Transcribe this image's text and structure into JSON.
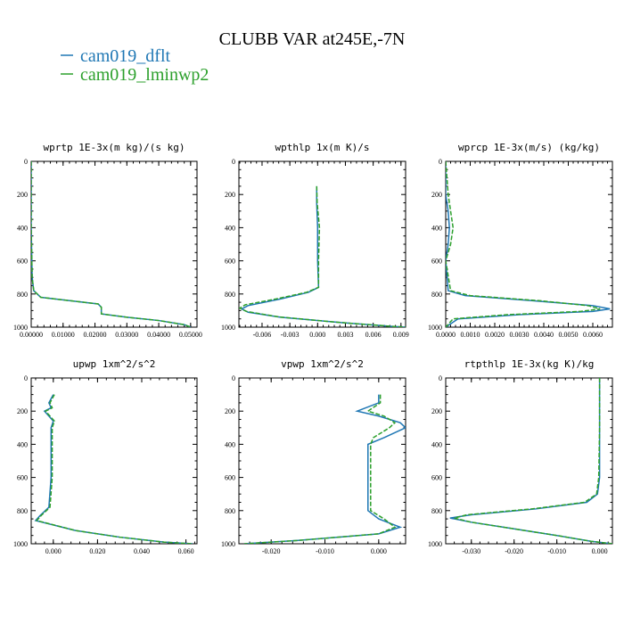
{
  "title": "CLUBB VAR at245E,-7N",
  "colors": {
    "blue": "#1f77b4",
    "green": "#2ca02c",
    "axis": "#000000"
  },
  "legend": [
    {
      "label": "cam019_dflt",
      "color": "#1f77b4"
    },
    {
      "label": "cam019_lminwp2",
      "color": "#2ca02c"
    }
  ],
  "chart_data": [
    {
      "type": "line",
      "title": "wprtp  1E-3x(m kg)/(s kg)",
      "xlim": [
        0.0,
        0.052
      ],
      "ylim": [
        1000,
        0
      ],
      "xticks": [
        0.0,
        0.01,
        0.02,
        0.03,
        0.04,
        0.05
      ],
      "xticklabels": [
        "0.00000",
        "0.01000",
        "0.02000",
        "0.03000",
        "0.04000",
        "0.05000"
      ],
      "yticks": [
        0,
        200,
        400,
        600,
        800,
        1000
      ],
      "yticklabels": [
        "0",
        "200",
        "400",
        "600",
        "800",
        "1000"
      ],
      "series": [
        {
          "name": "cam019_dflt",
          "points": [
            [
              0,
              0
            ],
            [
              0,
              400
            ],
            [
              0.0003,
              700
            ],
            [
              0.0008,
              780
            ],
            [
              0.003,
              820
            ],
            [
              0.012,
              840
            ],
            [
              0.021,
              860
            ],
            [
              0.022,
              880
            ],
            [
              0.022,
              920
            ],
            [
              0.03,
              940
            ],
            [
              0.04,
              960
            ],
            [
              0.048,
              985
            ],
            [
              0.05,
              1000
            ]
          ]
        },
        {
          "name": "cam019_lminwp2",
          "points": [
            [
              0,
              0
            ],
            [
              0,
              400
            ],
            [
              0.0003,
              700
            ],
            [
              0.0008,
              780
            ],
            [
              0.003,
              820
            ],
            [
              0.012,
              840
            ],
            [
              0.021,
              860
            ],
            [
              0.022,
              880
            ],
            [
              0.022,
              920
            ],
            [
              0.03,
              940
            ],
            [
              0.04,
              960
            ],
            [
              0.048,
              985
            ],
            [
              0.05,
              1000
            ]
          ]
        }
      ]
    },
    {
      "type": "line",
      "title": "wpthlp  1x(m K)/s",
      "xlim": [
        -0.0085,
        0.0095
      ],
      "ylim": [
        1000,
        0
      ],
      "xticks": [
        -0.006,
        -0.003,
        0.0,
        0.003,
        0.006,
        0.009
      ],
      "xticklabels": [
        "-0.006",
        "-0.003",
        "0.000",
        "0.003",
        "0.006",
        "0.009"
      ],
      "yticks": [
        0,
        200,
        400,
        600,
        800,
        1000
      ],
      "yticklabels": [
        "0",
        "200",
        "400",
        "600",
        "800",
        "1000"
      ],
      "series": [
        {
          "name": "cam019_dflt",
          "points": [
            [
              -0.0001,
              150
            ],
            [
              -0.0001,
              250
            ],
            [
              0.0,
              400
            ],
            [
              0.0,
              600
            ],
            [
              0.0001,
              760
            ],
            [
              -0.001,
              790
            ],
            [
              -0.004,
              830
            ],
            [
              -0.0075,
              870
            ],
            [
              -0.0082,
              890
            ],
            [
              -0.0075,
              910
            ],
            [
              -0.004,
              940
            ],
            [
              0.002,
              970
            ],
            [
              0.008,
              995
            ],
            [
              0.0095,
              1000
            ]
          ]
        },
        {
          "name": "cam019_lminwp2",
          "points": [
            [
              -0.0001,
              150
            ],
            [
              -5e-05,
              250
            ],
            [
              0.0002,
              400
            ],
            [
              0.0001,
              600
            ],
            [
              0.0001,
              760
            ],
            [
              -0.0012,
              790
            ],
            [
              -0.0045,
              830
            ],
            [
              -0.0078,
              865
            ],
            [
              -0.0084,
              885
            ],
            [
              -0.0077,
              905
            ],
            [
              -0.0042,
              938
            ],
            [
              0.002,
              970
            ],
            [
              0.008,
              995
            ],
            [
              0.0095,
              1000
            ]
          ]
        }
      ]
    },
    {
      "type": "line",
      "title": "wprcp  1E-3x(m/s) (kg/kg)",
      "xlim": [
        0.0,
        0.0068
      ],
      "ylim": [
        1000,
        0
      ],
      "xticks": [
        0.0,
        0.001,
        0.002,
        0.003,
        0.004,
        0.005,
        0.006
      ],
      "xticklabels": [
        "0.0000",
        "0.0010",
        "0.0020",
        "0.0030",
        "0.0040",
        "0.0050",
        "0.0060"
      ],
      "yticks": [
        0,
        200,
        400,
        600,
        800,
        1000
      ],
      "yticklabels": [
        "0",
        "200",
        "400",
        "600",
        "800",
        "1000"
      ],
      "series": [
        {
          "name": "cam019_dflt",
          "points": [
            [
              0,
              0
            ],
            [
              0,
              200
            ],
            [
              0.0001,
              300
            ],
            [
              0.00015,
              400
            ],
            [
              0.0001,
              500
            ],
            [
              0,
              600
            ],
            [
              0.0001,
              780
            ],
            [
              0.0008,
              810
            ],
            [
              0.0035,
              840
            ],
            [
              0.006,
              870
            ],
            [
              0.0067,
              890
            ],
            [
              0.006,
              905
            ],
            [
              0.003,
              925
            ],
            [
              0.0005,
              950
            ],
            [
              0,
              1000
            ]
          ]
        },
        {
          "name": "cam019_lminwp2",
          "points": [
            [
              0,
              0
            ],
            [
              0.0001,
              200
            ],
            [
              0.0002,
              300
            ],
            [
              0.0003,
              400
            ],
            [
              0.0002,
              500
            ],
            [
              0,
              600
            ],
            [
              0.0002,
              780
            ],
            [
              0.001,
              810
            ],
            [
              0.0038,
              840
            ],
            [
              0.0058,
              870
            ],
            [
              0.0063,
              890
            ],
            [
              0.0055,
              905
            ],
            [
              0.0025,
              925
            ],
            [
              0.0003,
              950
            ],
            [
              0,
              1000
            ]
          ]
        }
      ]
    },
    {
      "type": "line",
      "title": "upwp  1xm^2/s^2",
      "xlim": [
        -0.01,
        0.065
      ],
      "ylim": [
        1000,
        0
      ],
      "xticks": [
        0.0,
        0.02,
        0.04,
        0.06
      ],
      "xticklabels": [
        "0.000",
        "0.020",
        "0.040",
        "0.060"
      ],
      "yticks": [
        0,
        200,
        400,
        600,
        800,
        1000
      ],
      "yticklabels": [
        "0",
        "200",
        "400",
        "600",
        "800",
        "1000"
      ],
      "series": [
        {
          "name": "cam019_dflt",
          "points": [
            [
              0,
              100
            ],
            [
              -0.002,
              150
            ],
            [
              -0.001,
              180
            ],
            [
              -0.004,
              200
            ],
            [
              -0.002,
              230
            ],
            [
              0,
              260
            ],
            [
              -0.001,
              300
            ],
            [
              -0.001,
              400
            ],
            [
              -0.001,
              600
            ],
            [
              -0.002,
              780
            ],
            [
              -0.006,
              830
            ],
            [
              -0.008,
              860
            ],
            [
              0.01,
              920
            ],
            [
              0.03,
              960
            ],
            [
              0.05,
              990
            ],
            [
              0.063,
              1000
            ]
          ]
        },
        {
          "name": "cam019_lminwp2",
          "points": [
            [
              0.0005,
              100
            ],
            [
              -0.0015,
              150
            ],
            [
              -0.0005,
              180
            ],
            [
              -0.0035,
              200
            ],
            [
              -0.0015,
              230
            ],
            [
              0.0005,
              260
            ],
            [
              -0.0005,
              300
            ],
            [
              -0.0005,
              400
            ],
            [
              -0.0005,
              600
            ],
            [
              -0.0015,
              780
            ],
            [
              -0.0055,
              830
            ],
            [
              -0.0075,
              860
            ],
            [
              0.01,
              920
            ],
            [
              0.03,
              960
            ],
            [
              0.05,
              990
            ],
            [
              0.063,
              1000
            ]
          ]
        }
      ]
    },
    {
      "type": "line",
      "title": "vpwp  1xm^2/s^2",
      "xlim": [
        -0.026,
        0.005
      ],
      "ylim": [
        1000,
        0
      ],
      "xticks": [
        -0.02,
        -0.01,
        0.0
      ],
      "xticklabels": [
        "-0.020",
        "-0.010",
        "0.000"
      ],
      "yticks": [
        0,
        200,
        400,
        600,
        800,
        1000
      ],
      "yticklabels": [
        "0",
        "200",
        "400",
        "600",
        "800",
        "1000"
      ],
      "series": [
        {
          "name": "cam019_dflt",
          "points": [
            [
              0,
              100
            ],
            [
              0,
              150
            ],
            [
              -0.004,
              200
            ],
            [
              0,
              230
            ],
            [
              0.004,
              270
            ],
            [
              0.005,
              300
            ],
            [
              0.001,
              360
            ],
            [
              -0.002,
              400
            ],
            [
              -0.002,
              600
            ],
            [
              -0.002,
              800
            ],
            [
              0,
              850
            ],
            [
              0.004,
              900
            ],
            [
              0,
              940
            ],
            [
              -0.015,
              980
            ],
            [
              -0.025,
              1000
            ]
          ]
        },
        {
          "name": "cam019_lminwp2",
          "points": [
            [
              0.0003,
              100
            ],
            [
              0.0003,
              150
            ],
            [
              -0.002,
              200
            ],
            [
              0.001,
              230
            ],
            [
              0.003,
              270
            ],
            [
              0.002,
              300
            ],
            [
              -0.001,
              360
            ],
            [
              -0.0015,
              400
            ],
            [
              -0.0015,
              600
            ],
            [
              -0.0015,
              800
            ],
            [
              0.001,
              850
            ],
            [
              0.003,
              900
            ],
            [
              0,
              940
            ],
            [
              -0.015,
              980
            ],
            [
              -0.025,
              1000
            ]
          ]
        }
      ]
    },
    {
      "type": "line",
      "title": "rtpthlp  1E-3x(kg K)/kg",
      "xlim": [
        -0.036,
        0.003
      ],
      "ylim": [
        1000,
        0
      ],
      "xticks": [
        -0.03,
        -0.02,
        -0.01,
        0.0
      ],
      "xticklabels": [
        "-0.030",
        "-0.020",
        "-0.010",
        "0.000"
      ],
      "yticks": [
        0,
        200,
        400,
        600,
        800,
        1000
      ],
      "yticklabels": [
        "0",
        "200",
        "400",
        "600",
        "800",
        "1000"
      ],
      "series": [
        {
          "name": "cam019_dflt",
          "points": [
            [
              0,
              0
            ],
            [
              0,
              300
            ],
            [
              0,
              600
            ],
            [
              -0.0005,
              700
            ],
            [
              -0.003,
              750
            ],
            [
              -0.015,
              790
            ],
            [
              -0.03,
              825
            ],
            [
              -0.035,
              845
            ],
            [
              -0.03,
              870
            ],
            [
              -0.02,
              910
            ],
            [
              -0.01,
              950
            ],
            [
              -0.002,
              985
            ],
            [
              0.003,
              1000
            ]
          ]
        },
        {
          "name": "cam019_lminwp2",
          "points": [
            [
              0,
              0
            ],
            [
              0,
              300
            ],
            [
              -0.0002,
              600
            ],
            [
              -0.0007,
              700
            ],
            [
              -0.0035,
              750
            ],
            [
              -0.016,
              790
            ],
            [
              -0.031,
              825
            ],
            [
              -0.034,
              845
            ],
            [
              -0.03,
              870
            ],
            [
              -0.02,
              910
            ],
            [
              -0.01,
              950
            ],
            [
              -0.002,
              985
            ],
            [
              0.003,
              1000
            ]
          ]
        }
      ]
    }
  ]
}
